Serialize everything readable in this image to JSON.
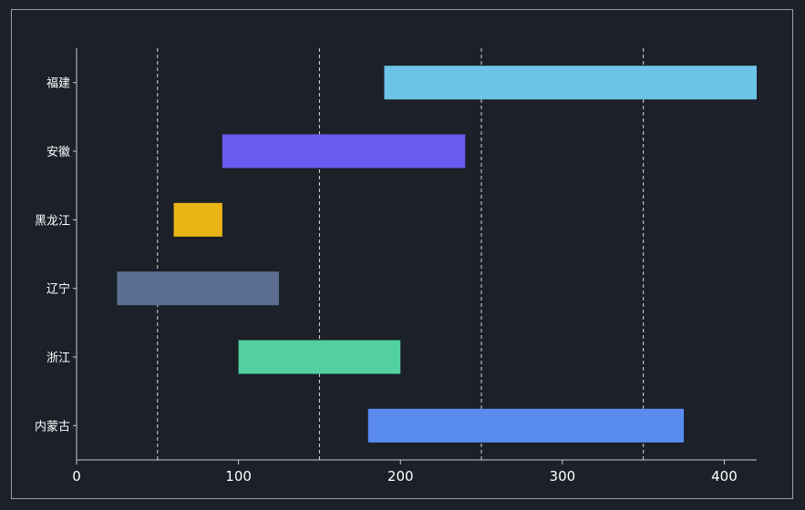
{
  "chart_data": {
    "type": "bar",
    "orientation": "horizontal",
    "subtype": "floating-range",
    "categories": [
      "福建",
      "安徽",
      "黑龙江",
      "辽宁",
      "浙江",
      "内蒙古"
    ],
    "ranges": [
      {
        "category": "福建",
        "start": 190,
        "end": 420,
        "color": "#6cc4e6"
      },
      {
        "category": "安徽",
        "start": 90,
        "end": 240,
        "color": "#6a5aef"
      },
      {
        "category": "黑龙江",
        "start": 60,
        "end": 90,
        "color": "#ebb416"
      },
      {
        "category": "辽宁",
        "start": 25,
        "end": 125,
        "color": "#5a6d91"
      },
      {
        "category": "浙江",
        "start": 100,
        "end": 200,
        "color": "#52d09f"
      },
      {
        "category": "内蒙古",
        "start": 180,
        "end": 375,
        "color": "#5a8cf0"
      }
    ],
    "x_ticks": [
      0,
      100,
      200,
      300,
      400
    ],
    "xlim": [
      0,
      420
    ],
    "vertical_dashed_lines": [
      50,
      150,
      250,
      350
    ],
    "grid": false,
    "colors": {
      "background": "#1b2029",
      "axis": "#c8ccd2",
      "text": "#ffffff",
      "dashed_line": "#d8dadd"
    }
  }
}
